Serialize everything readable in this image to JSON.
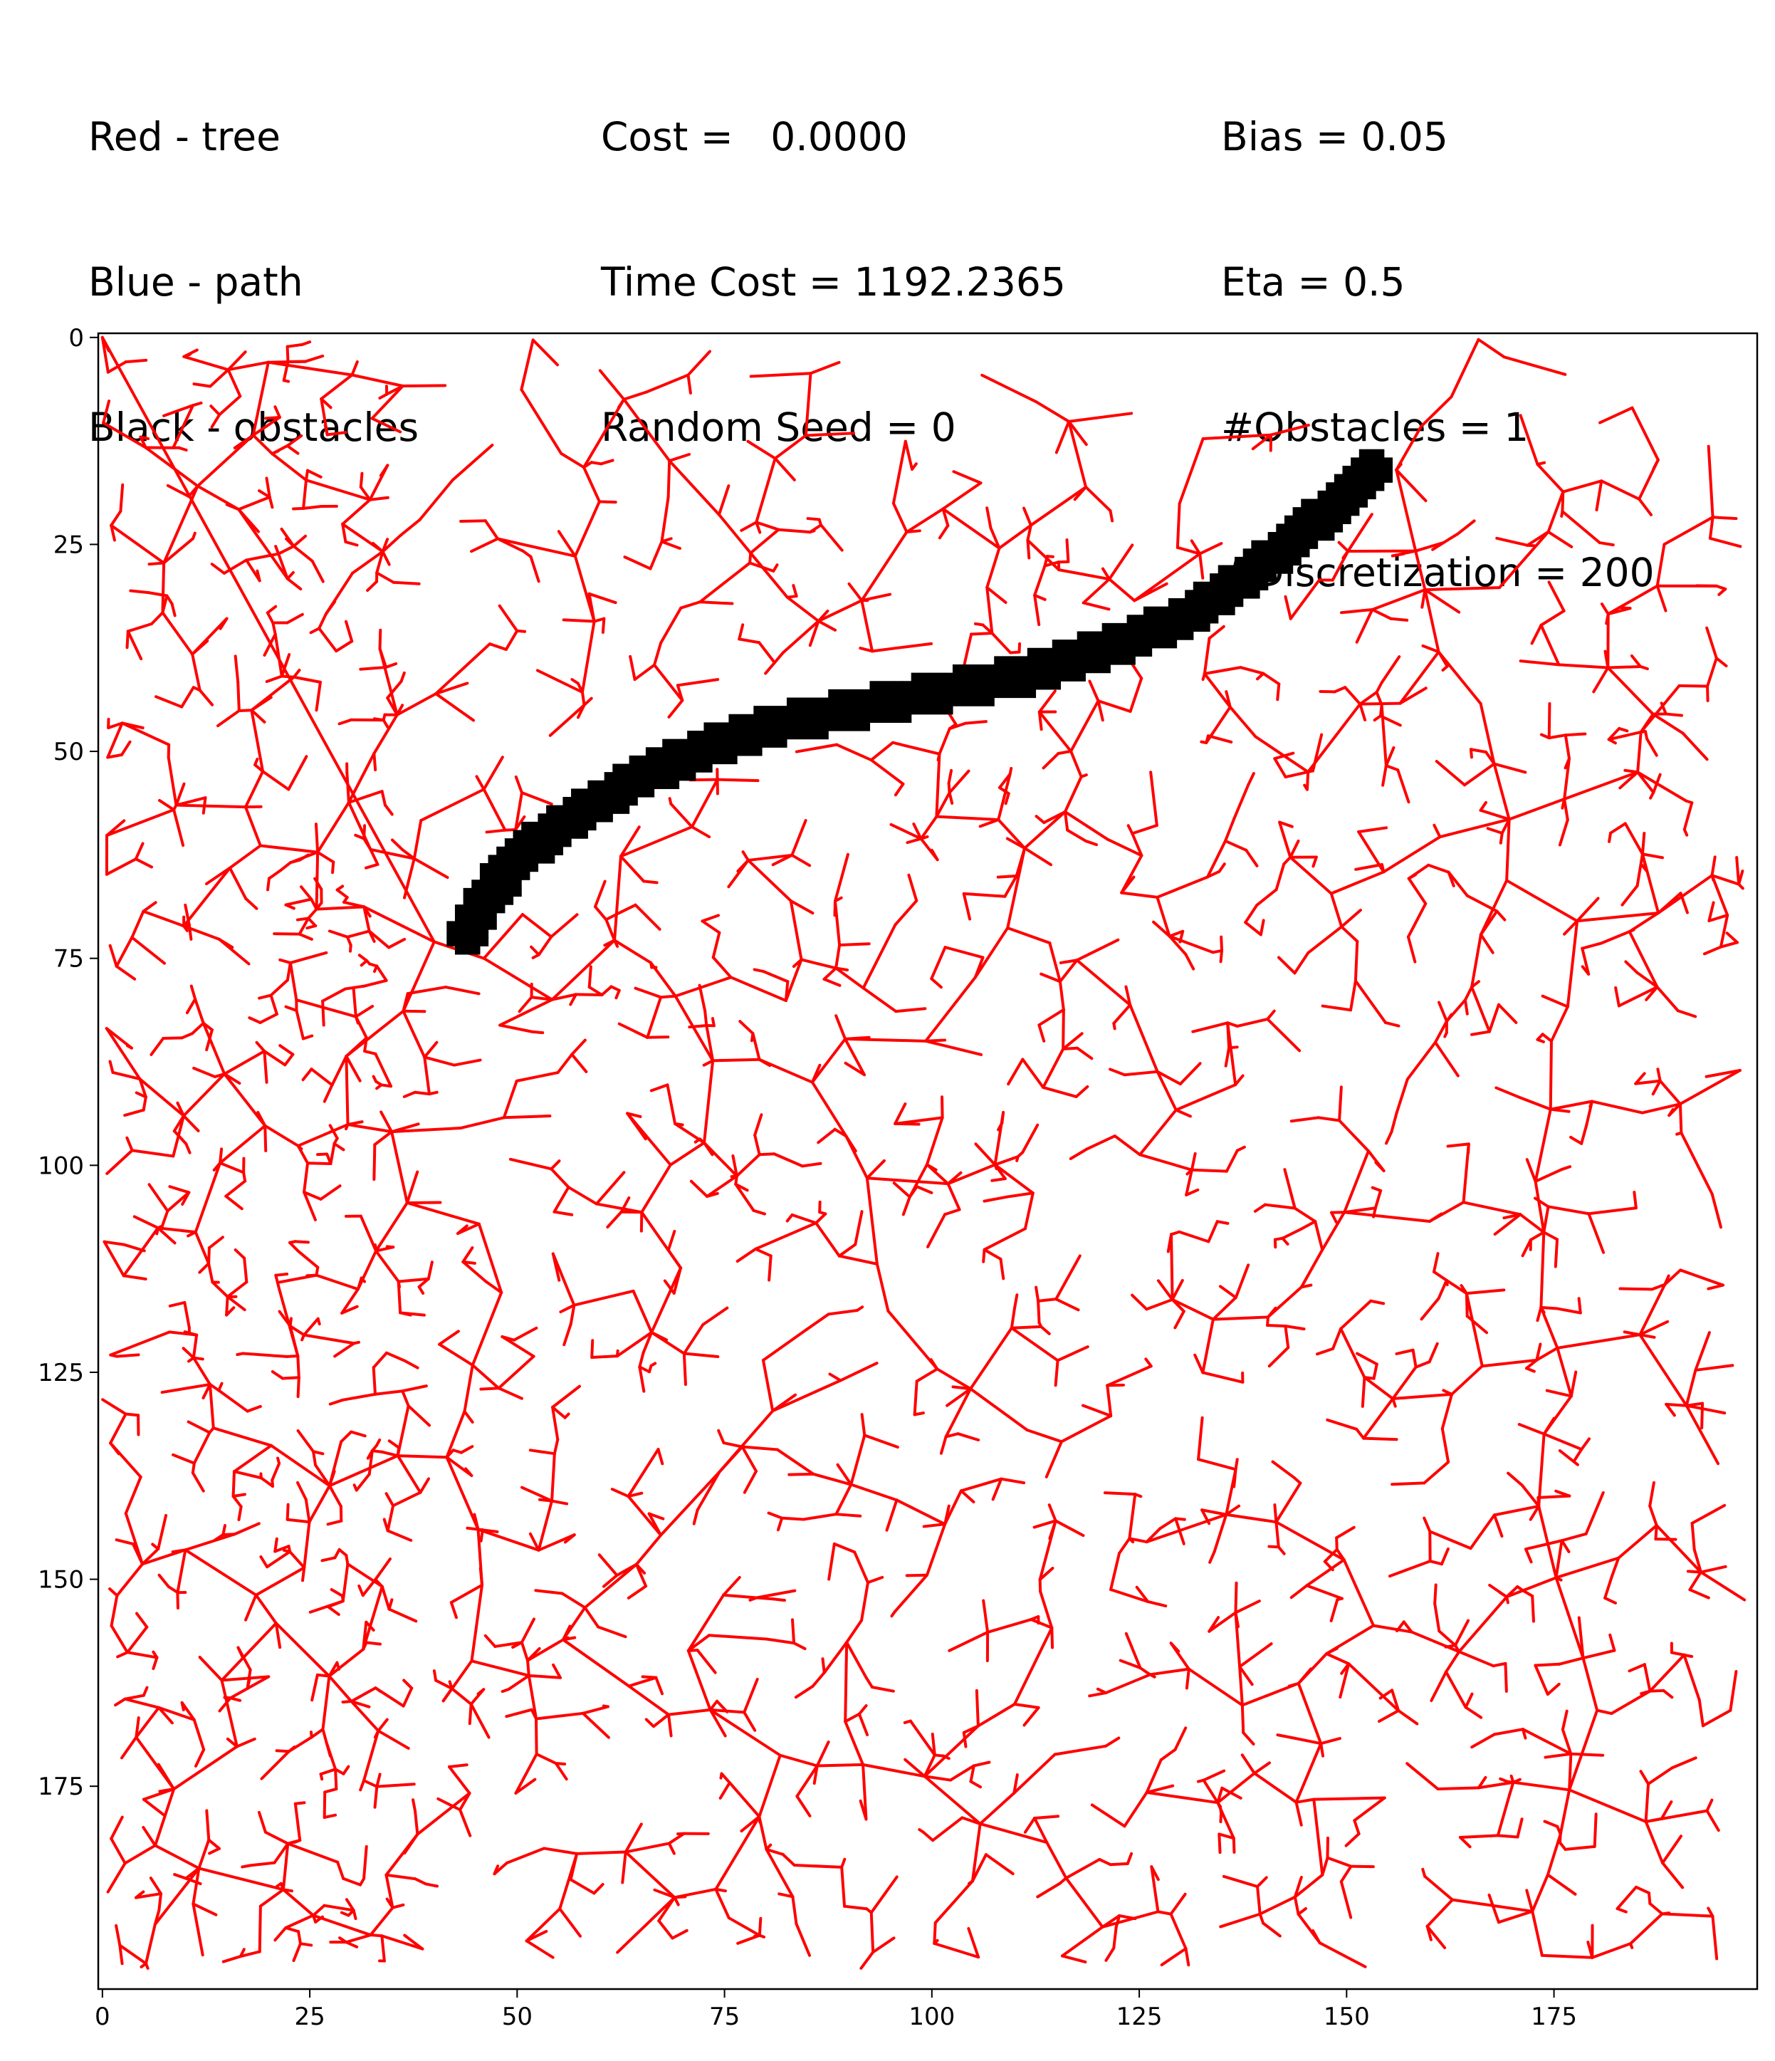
{
  "header": {
    "legend": {
      "tree_label": "Red - tree",
      "path_label": "Blue - path",
      "obstacles_label": "Black - obstacles"
    },
    "stats": {
      "cost_label": "Cost =   0.0000",
      "time_cost_label": "Time Cost = 1192.2365",
      "random_seed_label": "Random Seed = 0"
    },
    "params": {
      "bias_label": "Bias = 0.05",
      "eta_label": "Eta = 0.5",
      "obstacles_count_label": "#Obstacles = 1",
      "discretization_label": "#Discretization = 200"
    }
  },
  "colors": {
    "tree": "#ff0000",
    "path": "#0000ff",
    "obstacles": "#000000"
  },
  "chart_data": {
    "type": "line",
    "title": "",
    "xlabel": "",
    "ylabel": "",
    "xlim": [
      -0.5,
      199.5
    ],
    "ylim": [
      199.5,
      -0.5
    ],
    "x_ticks": [
      0,
      25,
      50,
      75,
      100,
      125,
      150,
      175
    ],
    "y_ticks": [
      0,
      25,
      50,
      75,
      100,
      125,
      150,
      175
    ],
    "grid": false,
    "start": [
      0,
      0
    ],
    "obstacle_centerline": [
      [
        44,
        72
      ],
      [
        46,
        68
      ],
      [
        50,
        63
      ],
      [
        55,
        59
      ],
      [
        60,
        56
      ],
      [
        65,
        53
      ],
      [
        72,
        50
      ],
      [
        80,
        47
      ],
      [
        90,
        45
      ],
      [
        100,
        43
      ],
      [
        110,
        41
      ],
      [
        120,
        38
      ],
      [
        130,
        34
      ],
      [
        138,
        29
      ],
      [
        144,
        24
      ],
      [
        149,
        20
      ],
      [
        153,
        16
      ]
    ],
    "obstacle_half_width": 2.5,
    "tree_hubs": [
      [
        0,
        0
      ],
      [
        46,
        75
      ],
      [
        156,
        16
      ],
      [
        40,
        73
      ],
      [
        20,
        3
      ],
      [
        60,
        4
      ]
    ],
    "tree_edge_count_estimate": 2600
  }
}
